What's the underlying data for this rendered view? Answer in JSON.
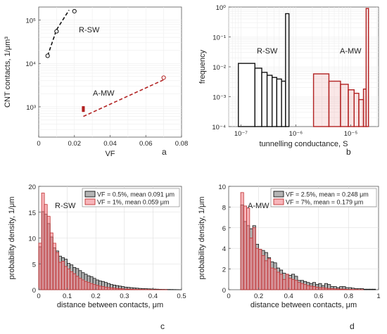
{
  "chart_data": [
    {
      "id": "a",
      "type": "scatter",
      "panel_label": "a",
      "xlabel": "VF",
      "ylabel": "CNT contacts, 1/μm³",
      "xlim": [
        0,
        0.08
      ],
      "ylim": [
        200,
        200000
      ],
      "yscale": "log",
      "grid": true,
      "xticks": [
        "0",
        "0.02",
        "0.04",
        "0.06",
        "0.08"
      ],
      "yticks": [
        "10³",
        "10⁴",
        "10⁵"
      ],
      "annotations": [
        "R-SW",
        "A-MW"
      ],
      "series": [
        {
          "name": "R-SW",
          "color": "#111111",
          "x": [
            0.005,
            0.01,
            0.02
          ],
          "y": [
            15000,
            55000,
            160000
          ],
          "fit": {
            "x": [
              0.005,
              0.01,
              0.017
            ],
            "y": [
              15000,
              60000,
              170000
            ]
          }
        },
        {
          "name": "A-MW",
          "color": "#b22222",
          "x": [
            0.025,
            0.025,
            0.025,
            0.025,
            0.07
          ],
          "y": [
            820,
            870,
            920,
            960,
            4700
          ],
          "fit": {
            "x": [
              0.025,
              0.07
            ],
            "y": [
              600,
              4200
            ]
          }
        }
      ]
    },
    {
      "id": "b",
      "type": "bar",
      "panel_label": "b",
      "xlabel": "tunnelling conductance, S",
      "ylabel": "frequency",
      "xscale": "log",
      "yscale": "log",
      "xlim": [
        6e-08,
        3.2e-05
      ],
      "ylim": [
        0.0001,
        1
      ],
      "grid": true,
      "xticks": [
        "10⁻⁷",
        "10⁻⁶",
        "10⁻⁵"
      ],
      "yticks": [
        "10⁻⁴",
        "10⁻³",
        "10⁻²",
        "10⁻¹",
        "10⁰"
      ],
      "annotations": [
        "R-SW",
        "A-MW"
      ],
      "series": [
        {
          "name": "R-SW",
          "color": "#111111",
          "edges": [
            9e-08,
            1.8e-07,
            2.4e-07,
            3e-07,
            3.7e-07,
            4.5e-07,
            5.5e-07,
            6.5e-07,
            7.5e-07
          ],
          "values": [
            0.013,
            0.009,
            0.0065,
            0.0052,
            0.0044,
            0.0039,
            0.0033,
            0.6
          ]
        },
        {
          "name": "A-MW",
          "color": "#b22222",
          "edges": [
            2.1e-06,
            4e-06,
            6.5e-06,
            9e-06,
            1.15e-05,
            1.4e-05,
            1.7e-05,
            1.9e-05,
            2.1e-05
          ],
          "values": [
            0.0058,
            0.0033,
            0.0026,
            0.0017,
            0.0013,
            0.0008,
            0.0018,
            0.9
          ]
        }
      ]
    },
    {
      "id": "c",
      "type": "bar",
      "panel_label": "c",
      "xlabel": "distance between contacts, μm",
      "ylabel": "probability density, 1/μm",
      "xlim": [
        0,
        0.5
      ],
      "ylim": [
        0,
        20
      ],
      "grid": true,
      "xticks": [
        "0",
        "0.1",
        "0.2",
        "0.3",
        "0.4",
        "0.5"
      ],
      "yticks": [
        "0",
        "5",
        "10",
        "15",
        "20"
      ],
      "annotations": [
        "R-SW"
      ],
      "legend_position": "top-right",
      "bin_start": 0.0,
      "bin_width": 0.01,
      "series": [
        {
          "name": "VF = 0.5%, mean 0.091 μm",
          "color": "#333333",
          "values": [
            8.3,
            15.1,
            14.6,
            12.8,
            10.2,
            8.1,
            7.5,
            6.5,
            6.2,
            5.9,
            5.1,
            4.8,
            4.3,
            4.1,
            3.7,
            3.3,
            3.0,
            2.7,
            2.5,
            2.2,
            1.9,
            1.7,
            1.6,
            1.4,
            1.2,
            1.0,
            0.9,
            0.8,
            0.7,
            0.6,
            0.5,
            0.45,
            0.4,
            0.35,
            0.3,
            0.25,
            0.22,
            0.2,
            0.17,
            0.15,
            0.12,
            0.1,
            0.08,
            0.07,
            0.06,
            0.05,
            0.04,
            0.03,
            0.02,
            0.01
          ]
        },
        {
          "name": "VF = 1%,    mean 0.059 μm",
          "color": "#c03030",
          "values": [
            9.0,
            18.7,
            16.5,
            14.2,
            11.0,
            9.0,
            7.2,
            5.3,
            5.5,
            4.5,
            4.0,
            3.5,
            3.1,
            2.6,
            2.2,
            1.9,
            1.6,
            1.4,
            1.2,
            1.0,
            0.85,
            0.7,
            0.6,
            0.5,
            0.42,
            0.36,
            0.3,
            0.25,
            0.2,
            0.17,
            0.14,
            0.11,
            0.09,
            0.07,
            0.06,
            0.05,
            0.04,
            0.03,
            0.025,
            0.02,
            0.015,
            0.01,
            0.01,
            0.005,
            0.005,
            0.0,
            0.0,
            0.0,
            0.0,
            0.0
          ]
        }
      ]
    },
    {
      "id": "d",
      "type": "bar",
      "panel_label": "d",
      "xlabel": "distance between contacts, μm",
      "ylabel": "probability density, 1/μm",
      "xlim": [
        0,
        1
      ],
      "ylim": [
        0,
        10
      ],
      "grid": true,
      "xticks": [
        "0",
        "0.2",
        "0.4",
        "0.6",
        "0.8",
        "1"
      ],
      "yticks": [
        "0",
        "2",
        "4",
        "6",
        "8",
        "10"
      ],
      "annotations": [
        "A-MW"
      ],
      "legend_position": "top-right",
      "bin_start": 0.08,
      "bin_width": 0.02,
      "series": [
        {
          "name": "VF = 2.5%, mean = 0.248 μm",
          "color": "#333333",
          "values": [
            8.2,
            6.6,
            6.2,
            5.9,
            6.2,
            4.4,
            3.9,
            3.8,
            3.6,
            3.1,
            2.7,
            2.6,
            2.1,
            1.9,
            1.6,
            1.5,
            1.4,
            1.5,
            1.3,
            0.9,
            0.9,
            0.8,
            0.7,
            0.6,
            0.7,
            0.5,
            0.6,
            0.4,
            0.6,
            0.5,
            0.3,
            0.3,
            0.2,
            0.3,
            0.3,
            0.2,
            0.2,
            0.15,
            0.1,
            0.1,
            0.1,
            0.05,
            0.05,
            0.05,
            0.05,
            0.0
          ]
        },
        {
          "name": "VF = 7%,     mean = 0.179 μm",
          "color": "#c03030",
          "values": [
            9.4,
            8.1,
            7.9,
            5.0,
            6.0,
            4.0,
            3.9,
            3.3,
            2.8,
            3.0,
            2.1,
            2.0,
            1.7,
            1.5,
            1.0,
            1.5,
            1.1,
            1.0,
            0.9,
            0.7,
            0.6,
            0.5,
            0.4,
            0.35,
            0.3,
            0.25,
            0.2,
            0.2,
            0.15,
            0.12,
            0.1,
            0.08,
            0.07,
            0.06,
            0.05,
            0.04,
            0.03,
            0.02,
            0.02,
            0.01,
            0.01,
            0.0,
            0.0,
            0.0,
            0.0,
            0.0
          ]
        }
      ]
    }
  ]
}
